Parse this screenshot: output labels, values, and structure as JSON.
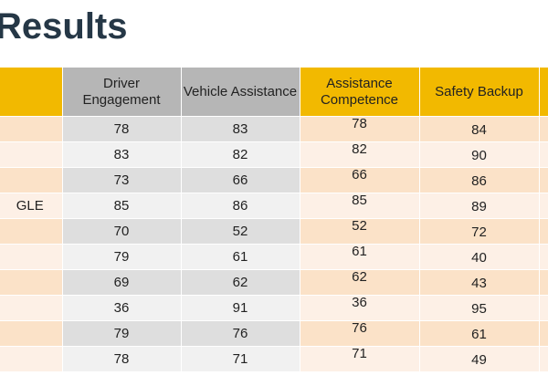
{
  "page": {
    "title": "Results"
  },
  "table": {
    "columns": [
      "",
      "Driver Engagement",
      "Vehicle Assistance",
      "Assistance Competence",
      "Safety Backup",
      ""
    ],
    "rows": [
      {
        "name": "",
        "driver_engagement": "78",
        "vehicle_assistance": "83",
        "assistance_competence": "78",
        "safety_backup": "84"
      },
      {
        "name": "",
        "driver_engagement": "83",
        "vehicle_assistance": "82",
        "assistance_competence": "82",
        "safety_backup": "90"
      },
      {
        "name": "",
        "driver_engagement": "73",
        "vehicle_assistance": "66",
        "assistance_competence": "66",
        "safety_backup": "86"
      },
      {
        "name": "GLE",
        "driver_engagement": "85",
        "vehicle_assistance": "86",
        "assistance_competence": "85",
        "safety_backup": "89"
      },
      {
        "name": "",
        "driver_engagement": "70",
        "vehicle_assistance": "52",
        "assistance_competence": "52",
        "safety_backup": "72"
      },
      {
        "name": "",
        "driver_engagement": "79",
        "vehicle_assistance": "61",
        "assistance_competence": "61",
        "safety_backup": "40"
      },
      {
        "name": "",
        "driver_engagement": "69",
        "vehicle_assistance": "62",
        "assistance_competence": "62",
        "safety_backup": "43"
      },
      {
        "name": "",
        "driver_engagement": "36",
        "vehicle_assistance": "91",
        "assistance_competence": "36",
        "safety_backup": "95"
      },
      {
        "name": "",
        "driver_engagement": "79",
        "vehicle_assistance": "76",
        "assistance_competence": "76",
        "safety_backup": "61"
      },
      {
        "name": "",
        "driver_engagement": "78",
        "vehicle_assistance": "71",
        "assistance_competence": "71",
        "safety_backup": "49"
      }
    ]
  },
  "colors": {
    "title": "#253746",
    "header_gold": "#f2b900",
    "header_gray": "#b6b6b6",
    "row_peach_dark": "#fbe2c8",
    "row_peach_light": "#fdf0e6",
    "row_gray_dark": "#dedede",
    "row_gray_light": "#f1f1f1"
  }
}
